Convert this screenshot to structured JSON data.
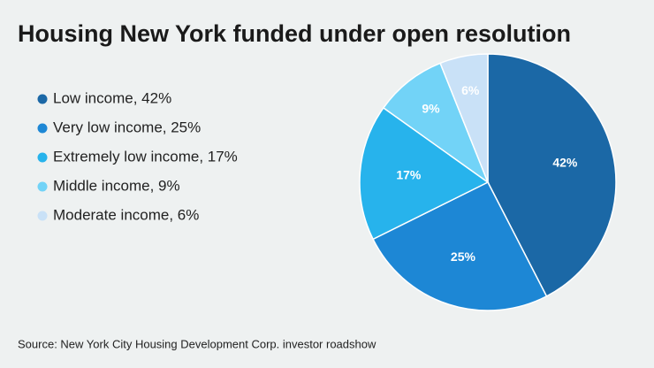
{
  "chart_data": {
    "type": "pie",
    "title": "Housing New York funded under open resolution",
    "categories": [
      "Low income, 42%",
      "Very low income, 25%",
      "Extremely low income, 17%",
      "Middle income, 9%",
      "Moderate income, 6%"
    ],
    "values": [
      42,
      25,
      17,
      9,
      6
    ],
    "value_labels": [
      "42%",
      "25%",
      "17%",
      "9%",
      "6%"
    ],
    "colors": [
      "#1b68a6",
      "#1d87d5",
      "#27b3ec",
      "#72d3f7",
      "#c9e1f7"
    ],
    "legend": "left",
    "source": "Source: New York City Housing Development Corp. investor roadshow"
  }
}
